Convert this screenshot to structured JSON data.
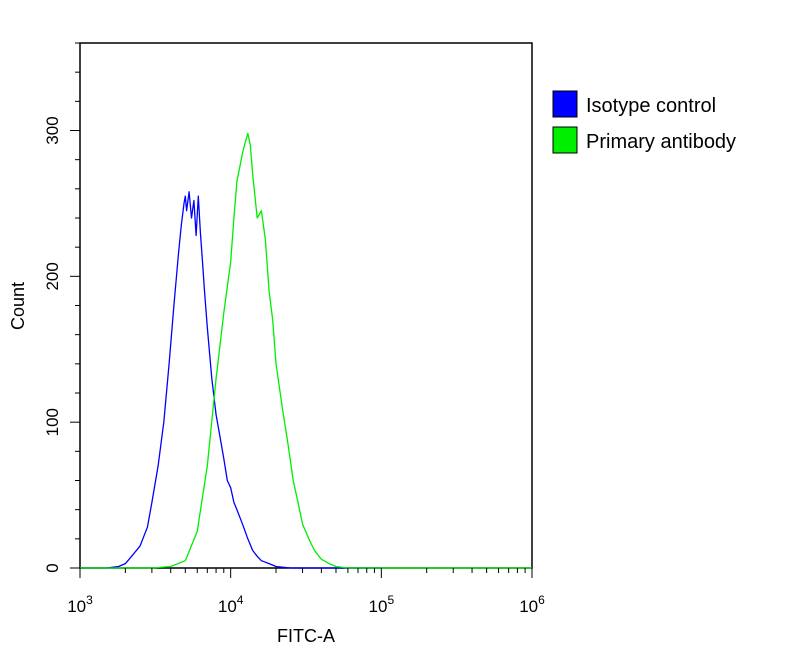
{
  "chart_data": {
    "type": "line",
    "xlabel": "FITC-A",
    "ylabel": "Count",
    "x_scale": "log",
    "xlim": [
      1000,
      1000000
    ],
    "ylim": [
      0,
      360
    ],
    "x_ticks": [
      1000,
      10000,
      100000,
      1000000
    ],
    "x_tick_labels": [
      {
        "base": "10",
        "exp": "3"
      },
      {
        "base": "10",
        "exp": "4"
      },
      {
        "base": "10",
        "exp": "5"
      },
      {
        "base": "10",
        "exp": "6"
      }
    ],
    "y_ticks": [
      0,
      100,
      200,
      300
    ],
    "y_tick_labels": [
      "0",
      "100",
      "200",
      "300"
    ],
    "grid": false,
    "legend_position": "top-right-outside",
    "series": [
      {
        "name": "Isotype control",
        "color": "#0000ff",
        "x": [
          1000,
          1500,
          1800,
          2000,
          2200,
          2500,
          2800,
          3000,
          3300,
          3600,
          3900,
          4200,
          4500,
          4700,
          4900,
          5000,
          5100,
          5300,
          5500,
          5700,
          5900,
          6100,
          6300,
          6500,
          6700,
          7000,
          7500,
          8000,
          8500,
          9000,
          9500,
          10000,
          10500,
          11000,
          12000,
          13000,
          14000,
          15000,
          16000,
          18000,
          20000,
          25000,
          30000,
          100000
        ],
        "y": [
          0,
          0,
          1,
          3,
          8,
          15,
          28,
          45,
          70,
          100,
          140,
          180,
          215,
          235,
          250,
          255,
          245,
          258,
          240,
          252,
          228,
          255,
          230,
          210,
          190,
          165,
          130,
          105,
          90,
          75,
          60,
          55,
          45,
          40,
          30,
          20,
          12,
          8,
          5,
          3,
          1,
          0,
          0,
          0
        ]
      },
      {
        "name": "Primary antibody",
        "color": "#00ee00",
        "x": [
          1000,
          3000,
          4000,
          5000,
          6000,
          7000,
          8000,
          9000,
          10000,
          10500,
          11000,
          11500,
          12000,
          12500,
          13000,
          13500,
          14000,
          15000,
          16000,
          17000,
          18000,
          19000,
          20000,
          22000,
          24000,
          26000,
          28000,
          30000,
          33000,
          36000,
          40000,
          45000,
          50000,
          60000,
          70000,
          1000000
        ],
        "y": [
          0,
          0,
          1,
          5,
          25,
          70,
          130,
          175,
          210,
          240,
          265,
          275,
          285,
          292,
          298,
          290,
          270,
          240,
          245,
          225,
          190,
          170,
          140,
          110,
          85,
          60,
          45,
          30,
          20,
          12,
          6,
          3,
          1,
          0,
          0,
          0
        ]
      }
    ]
  }
}
